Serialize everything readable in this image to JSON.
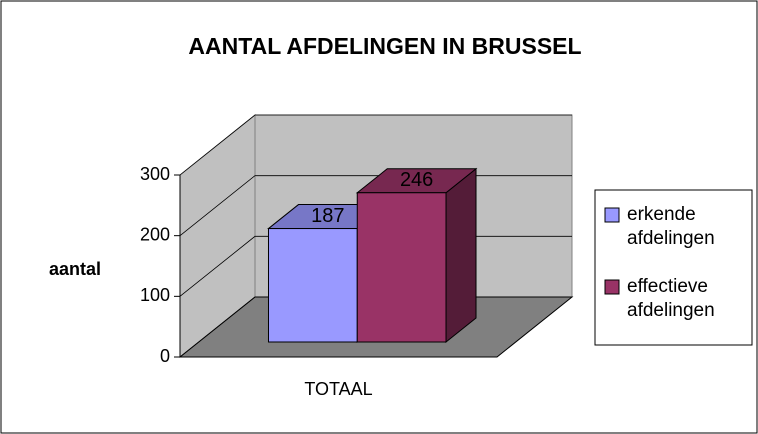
{
  "chart_data": {
    "type": "bar3d",
    "title": "AANTAL AFDELINGEN IN BRUSSEL",
    "y_label": "aantal",
    "categories": [
      "TOTAAL"
    ],
    "series": [
      {
        "name": "erkende afdelingen",
        "color": "#9999ff",
        "values": [
          187
        ]
      },
      {
        "name": "effectieve afdelingen",
        "color": "#993366",
        "values": [
          246
        ]
      }
    ],
    "ylim": [
      0,
      300
    ],
    "yticks": [
      0,
      100,
      200,
      300
    ],
    "grid": true,
    "legend": "right"
  }
}
